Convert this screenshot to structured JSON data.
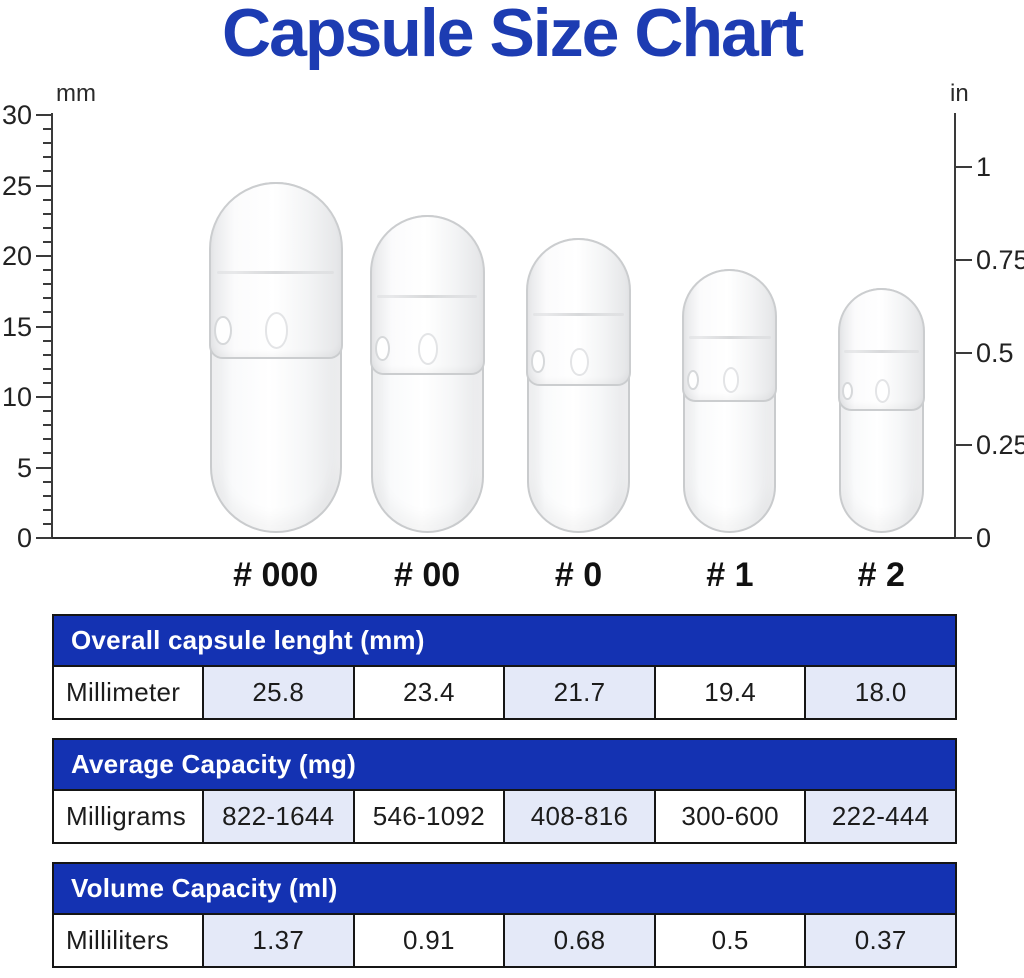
{
  "title": "Capsule Size Chart",
  "colors": {
    "title_blue": "#1d3cb2",
    "header_blue": "#1432b2",
    "cell_lavender": "#e4e9f8",
    "table_border": "#151515",
    "axis_ink": "#2a2a2a",
    "capsule_outline": "#c9cbcd"
  },
  "chart_data": {
    "type": "pictorial-bar",
    "title": "Capsule Size Chart",
    "categories": [
      "# 000",
      "# 00",
      "# 0",
      "# 1",
      "# 2"
    ],
    "values_length_mm": [
      25.8,
      23.4,
      21.7,
      19.4,
      18.0
    ],
    "capsule_diameter_mm": [
      9.9,
      8.5,
      7.7,
      7.0,
      6.4
    ],
    "left_axis": {
      "unit": "mm",
      "range": [
        0,
        30
      ],
      "max_mm": 30,
      "minor_step_mm": 1,
      "major_step_mm": 5,
      "major_ticks": [
        {
          "value": 30,
          "label": "30"
        },
        {
          "value": 25,
          "label": "25"
        },
        {
          "value": 20,
          "label": "20"
        },
        {
          "value": 15,
          "label": "15"
        },
        {
          "value": 10,
          "label": "10"
        },
        {
          "value": 5,
          "label": "5"
        },
        {
          "value": 0,
          "label": "0"
        }
      ]
    },
    "right_axis": {
      "unit": "in",
      "range": [
        0,
        1
      ],
      "ticks": [
        {
          "value": 1,
          "label": "1"
        },
        {
          "value": 0.75,
          "label": "0.75"
        },
        {
          "value": 0.5,
          "label": "0.5"
        },
        {
          "value": 0.25,
          "label": "0.25"
        },
        {
          "value": 0,
          "label": "0"
        }
      ]
    }
  },
  "tables": [
    {
      "header": "Overall capsule lenght (mm)",
      "row_label": "Millimeter",
      "values": [
        "25.8",
        "23.4",
        "21.7",
        "19.4",
        "18.0"
      ]
    },
    {
      "header": "Average Capacity (mg)",
      "row_label": "Milligrams",
      "values": [
        "822-1644",
        "546-1092",
        "408-816",
        "300-600",
        "222-444"
      ]
    },
    {
      "header": "Volume Capacity (ml)",
      "row_label": "Milliliters",
      "values": [
        "1.37",
        "0.91",
        "0.68",
        "0.5",
        "0.37"
      ]
    }
  ]
}
